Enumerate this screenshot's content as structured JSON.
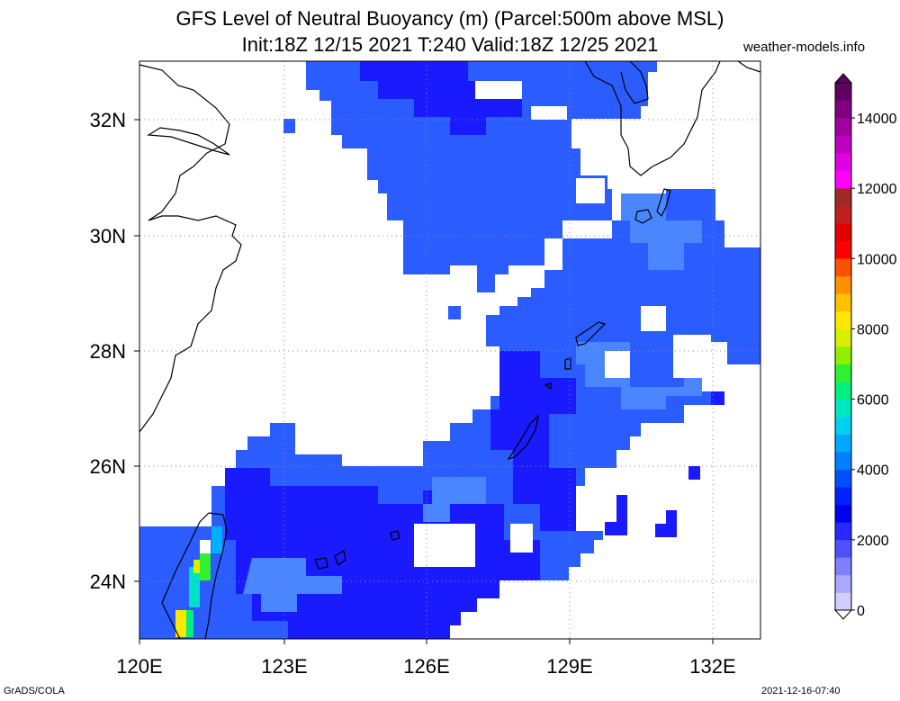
{
  "header": {
    "title_line1": "GFS Level of Neutral Buoyancy (m) (Parcel:500m above MSL)",
    "title_line2": "Init:18Z 12/15 2021 T:240 Valid:18Z 12/25 2021",
    "site": "weather-models.info"
  },
  "axes": {
    "lon_labels": [
      "120E",
      "123E",
      "126E",
      "129E",
      "132E"
    ],
    "lat_labels": [
      "24N",
      "26N",
      "28N",
      "30N",
      "32N"
    ]
  },
  "colorbar": {
    "labels": [
      "0",
      "2000",
      "4000",
      "6000",
      "8000",
      "10000",
      "12000",
      "14000"
    ],
    "colors": [
      "#ffffff",
      "#d0d0ff",
      "#a8a8ff",
      "#8080ff",
      "#5050ff",
      "#2828ff",
      "#0000f0",
      "#0022ff",
      "#0050ff",
      "#0080ff",
      "#00a8ff",
      "#00d0f0",
      "#00e8c0",
      "#00f080",
      "#30f030",
      "#90f000",
      "#d8f000",
      "#ffe800",
      "#ffc000",
      "#ff9000",
      "#ff5000",
      "#ff0000",
      "#e00000",
      "#c02020",
      "#a02828",
      "#ff00ff",
      "#e000e0",
      "#c000c0",
      "#a000a0",
      "#800080",
      "#600060"
    ]
  },
  "footer": {
    "credit": "GrADS/COLA",
    "timestamp": "2021-12-16-07:40"
  },
  "colors": {
    "blue_dark": "#1a1aff",
    "blue_mid": "#2a5cff",
    "blue_light": "#3d7bff",
    "grid": "#888888"
  }
}
